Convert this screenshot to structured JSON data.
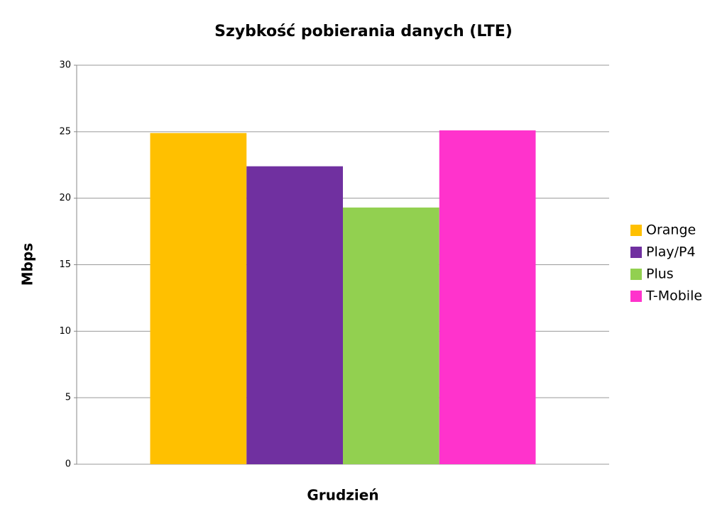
{
  "chart_data": {
    "type": "bar",
    "title": "Szybkość pobierania danych (LTE)",
    "y_label": "Mbps",
    "categories": [
      "Grudzień"
    ],
    "series": [
      {
        "name": "Orange",
        "color": "#ffc000",
        "values": [
          24.9
        ]
      },
      {
        "name": "Play/P4",
        "color": "#7030a0",
        "values": [
          22.4
        ]
      },
      {
        "name": "Plus",
        "color": "#92d050",
        "values": [
          19.3
        ]
      },
      {
        "name": "T-Mobile",
        "color": "#ff33cc",
        "values": [
          25.1
        ]
      }
    ],
    "ylim": [
      0,
      30
    ],
    "yticks": [
      0,
      5,
      10,
      15,
      20,
      25,
      30
    ],
    "grid": true,
    "legend": "right"
  }
}
